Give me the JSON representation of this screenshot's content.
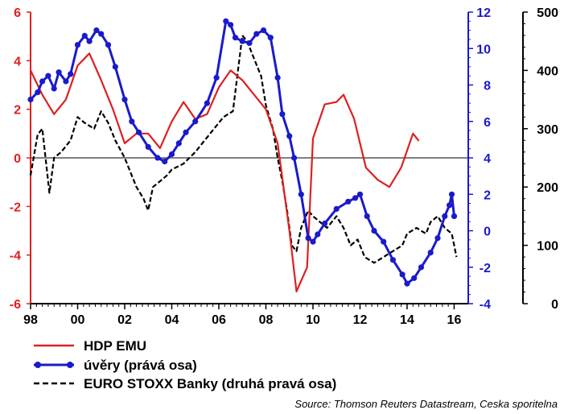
{
  "chart_data": {
    "type": "line",
    "title": "",
    "xlabel": "",
    "x_ticks": [
      "98",
      "00",
      "02",
      "04",
      "06",
      "08",
      "10",
      "12",
      "14",
      "16"
    ],
    "axes": {
      "left": {
        "ylim": [
          -6,
          6
        ],
        "ticks": [
          -6,
          -4,
          -2,
          0,
          2,
          4,
          6
        ],
        "color": "#dd2020"
      },
      "right1": {
        "ylim": [
          -4,
          12
        ],
        "ticks": [
          -4,
          -2,
          0,
          2,
          4,
          6,
          8,
          10,
          12
        ],
        "color": "#1a1acc"
      },
      "right2": {
        "ylim": [
          0,
          500
        ],
        "ticks": [
          0,
          100,
          200,
          300,
          400,
          500
        ],
        "color": "#000000"
      }
    },
    "zero_line": true,
    "series": [
      {
        "name": "HDP EMU",
        "axis": "left",
        "color": "#dd2020",
        "style": "solid",
        "points": [
          [
            1998.0,
            3.6
          ],
          [
            1998.5,
            2.6
          ],
          [
            1999.0,
            1.8
          ],
          [
            1999.5,
            2.4
          ],
          [
            2000.0,
            3.8
          ],
          [
            2000.5,
            4.3
          ],
          [
            2001.0,
            3.2
          ],
          [
            2001.5,
            2.0
          ],
          [
            2002.0,
            0.6
          ],
          [
            2002.5,
            1.0
          ],
          [
            2003.0,
            1.0
          ],
          [
            2003.5,
            0.4
          ],
          [
            2004.0,
            1.5
          ],
          [
            2004.5,
            2.3
          ],
          [
            2005.0,
            1.6
          ],
          [
            2005.5,
            1.8
          ],
          [
            2006.0,
            2.9
          ],
          [
            2006.5,
            3.6
          ],
          [
            2007.0,
            3.2
          ],
          [
            2007.5,
            2.6
          ],
          [
            2008.0,
            2.0
          ],
          [
            2008.5,
            0.6
          ],
          [
            2009.0,
            -3.0
          ],
          [
            2009.3,
            -5.5
          ],
          [
            2009.75,
            -4.5
          ],
          [
            2010.0,
            0.8
          ],
          [
            2010.5,
            2.2
          ],
          [
            2011.0,
            2.3
          ],
          [
            2011.3,
            2.6
          ],
          [
            2011.75,
            1.6
          ],
          [
            2012.25,
            -0.4
          ],
          [
            2012.75,
            -0.9
          ],
          [
            2013.25,
            -1.2
          ],
          [
            2013.75,
            -0.4
          ],
          [
            2014.0,
            0.3
          ],
          [
            2014.25,
            1.0
          ],
          [
            2014.5,
            0.7
          ]
        ]
      },
      {
        "name": "úvěry (prává osa)",
        "axis": "right1",
        "color": "#1a1acc",
        "style": "solid-markers",
        "points": [
          [
            1998.0,
            7.2
          ],
          [
            1998.3,
            7.6
          ],
          [
            1998.5,
            8.2
          ],
          [
            1998.75,
            8.5
          ],
          [
            1999.0,
            7.8
          ],
          [
            1999.2,
            8.7
          ],
          [
            1999.5,
            8.2
          ],
          [
            1999.7,
            8.6
          ],
          [
            2000.0,
            10.2
          ],
          [
            2000.3,
            10.7
          ],
          [
            2000.5,
            10.4
          ],
          [
            2000.8,
            11.0
          ],
          [
            2001.0,
            10.8
          ],
          [
            2001.3,
            10.2
          ],
          [
            2001.6,
            9.0
          ],
          [
            2002.0,
            7.2
          ],
          [
            2002.3,
            6.0
          ],
          [
            2002.6,
            5.4
          ],
          [
            2003.0,
            4.6
          ],
          [
            2003.4,
            4.0
          ],
          [
            2003.7,
            3.8
          ],
          [
            2004.0,
            4.2
          ],
          [
            2004.3,
            4.8
          ],
          [
            2004.6,
            5.4
          ],
          [
            2005.0,
            6.0
          ],
          [
            2005.5,
            7.0
          ],
          [
            2005.9,
            8.4
          ],
          [
            2006.3,
            11.5
          ],
          [
            2006.5,
            11.3
          ],
          [
            2006.7,
            10.6
          ],
          [
            2007.0,
            10.4
          ],
          [
            2007.3,
            10.3
          ],
          [
            2007.6,
            10.8
          ],
          [
            2007.9,
            11.0
          ],
          [
            2008.2,
            10.6
          ],
          [
            2008.5,
            8.4
          ],
          [
            2008.7,
            6.4
          ],
          [
            2009.0,
            5.2
          ],
          [
            2009.2,
            4.0
          ],
          [
            2009.5,
            2.0
          ],
          [
            2009.8,
            -0.4
          ],
          [
            2010.0,
            -0.6
          ],
          [
            2010.2,
            -0.2
          ],
          [
            2010.5,
            0.4
          ],
          [
            2011.0,
            1.2
          ],
          [
            2011.5,
            1.6
          ],
          [
            2011.8,
            1.8
          ],
          [
            2012.0,
            2.0
          ],
          [
            2012.3,
            0.8
          ],
          [
            2012.6,
            0.0
          ],
          [
            2013.0,
            -0.6
          ],
          [
            2013.4,
            -1.6
          ],
          [
            2013.8,
            -2.4
          ],
          [
            2014.0,
            -2.9
          ],
          [
            2014.3,
            -2.6
          ],
          [
            2014.6,
            -2.0
          ],
          [
            2015.0,
            -1.2
          ],
          [
            2015.3,
            -0.4
          ],
          [
            2015.6,
            0.8
          ],
          [
            2015.8,
            1.4
          ],
          [
            2015.9,
            2.0
          ],
          [
            2016.0,
            0.8
          ]
        ]
      },
      {
        "name": "EURO STOXX Banky (druhá pravá osa)",
        "axis": "right2",
        "color": "#000000",
        "style": "dashed",
        "points": [
          [
            1998.0,
            220
          ],
          [
            1998.3,
            290
          ],
          [
            1998.5,
            300
          ],
          [
            1998.8,
            190
          ],
          [
            1999.0,
            250
          ],
          [
            1999.3,
            260
          ],
          [
            1999.7,
            280
          ],
          [
            2000.0,
            320
          ],
          [
            2000.3,
            310
          ],
          [
            2000.7,
            300
          ],
          [
            2001.0,
            330
          ],
          [
            2001.3,
            310
          ],
          [
            2001.6,
            280
          ],
          [
            2002.0,
            250
          ],
          [
            2002.2,
            230
          ],
          [
            2002.5,
            200
          ],
          [
            2002.8,
            180
          ],
          [
            2003.0,
            160
          ],
          [
            2003.2,
            200
          ],
          [
            2003.5,
            210
          ],
          [
            2003.8,
            220
          ],
          [
            2004.0,
            230
          ],
          [
            2004.5,
            240
          ],
          [
            2005.0,
            260
          ],
          [
            2005.4,
            280
          ],
          [
            2005.8,
            300
          ],
          [
            2006.2,
            320
          ],
          [
            2006.6,
            330
          ],
          [
            2007.0,
            460
          ],
          [
            2007.2,
            450
          ],
          [
            2007.5,
            420
          ],
          [
            2007.8,
            390
          ],
          [
            2008.0,
            340
          ],
          [
            2008.3,
            300
          ],
          [
            2008.5,
            250
          ],
          [
            2008.7,
            210
          ],
          [
            2008.9,
            160
          ],
          [
            2009.1,
            100
          ],
          [
            2009.3,
            90
          ],
          [
            2009.5,
            130
          ],
          [
            2009.8,
            160
          ],
          [
            2010.0,
            150
          ],
          [
            2010.3,
            140
          ],
          [
            2010.6,
            130
          ],
          [
            2011.0,
            150
          ],
          [
            2011.3,
            130
          ],
          [
            2011.6,
            100
          ],
          [
            2011.9,
            110
          ],
          [
            2012.2,
            80
          ],
          [
            2012.6,
            70
          ],
          [
            2013.0,
            80
          ],
          [
            2013.4,
            90
          ],
          [
            2013.8,
            100
          ],
          [
            2014.0,
            120
          ],
          [
            2014.4,
            130
          ],
          [
            2014.8,
            120
          ],
          [
            2015.0,
            140
          ],
          [
            2015.3,
            150
          ],
          [
            2015.6,
            130
          ],
          [
            2015.9,
            120
          ],
          [
            2016.0,
            100
          ],
          [
            2016.1,
            80
          ]
        ]
      }
    ],
    "legend": {
      "placement": "bottom-left",
      "entries": [
        "HDP EMU",
        "úvěry (prává osa)",
        "EURO STOXX Banky (druhá pravá osa)"
      ]
    },
    "source": "Source: Thomson Reuters Datastream, Ceska sporitelna"
  }
}
